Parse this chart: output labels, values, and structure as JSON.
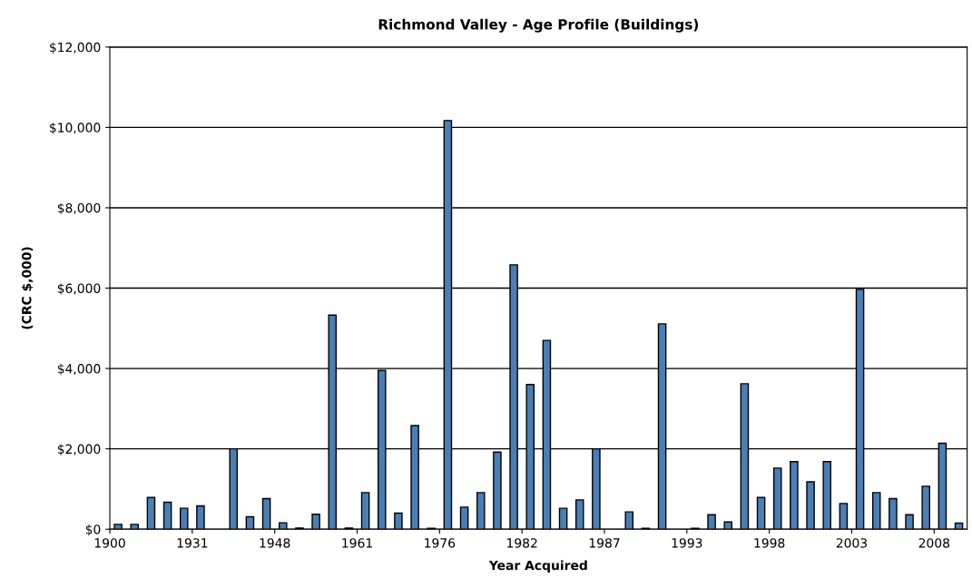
{
  "chart_data": {
    "type": "bar",
    "title": "Richmond Valley - Age Profile (Buildings)",
    "xlabel": "Year Acquired",
    "ylabel": "(CRC $,000)",
    "categories": [
      "1900",
      null,
      null,
      null,
      null,
      "1931",
      null,
      null,
      null,
      null,
      "1948",
      null,
      null,
      null,
      null,
      "1961",
      null,
      null,
      null,
      null,
      "1976",
      null,
      null,
      null,
      null,
      "1982",
      null,
      null,
      null,
      null,
      "1987",
      null,
      null,
      null,
      null,
      "1993",
      null,
      null,
      null,
      null,
      "1998",
      null,
      null,
      null,
      null,
      "2003",
      null,
      null,
      null,
      null,
      "2008",
      null
    ],
    "values": [
      120,
      120,
      790,
      670,
      520,
      580,
      null,
      2000,
      310,
      760,
      160,
      30,
      370,
      5330,
      30,
      910,
      3950,
      400,
      2580,
      20,
      10170,
      550,
      910,
      1920,
      6580,
      3600,
      4700,
      520,
      730,
      2000,
      null,
      430,
      20,
      5110,
      null,
      20,
      360,
      180,
      3620,
      790,
      1520,
      1680,
      1180,
      1680,
      640,
      5970,
      910,
      760,
      360,
      1070,
      2140,
      150
    ],
    "color": "#4a7eb4",
    "ylim": [
      0,
      12000
    ],
    "yticks": [
      {
        "value": 0,
        "label": "$0"
      },
      {
        "value": 2000,
        "label": "$2,000"
      },
      {
        "value": 4000,
        "label": "$4,000"
      },
      {
        "value": 6000,
        "label": "$6,000"
      },
      {
        "value": 8000,
        "label": "$8,000"
      },
      {
        "value": 10000,
        "label": "$10,000"
      },
      {
        "value": 12000,
        "label": "$12,000"
      }
    ],
    "grid": "y"
  }
}
